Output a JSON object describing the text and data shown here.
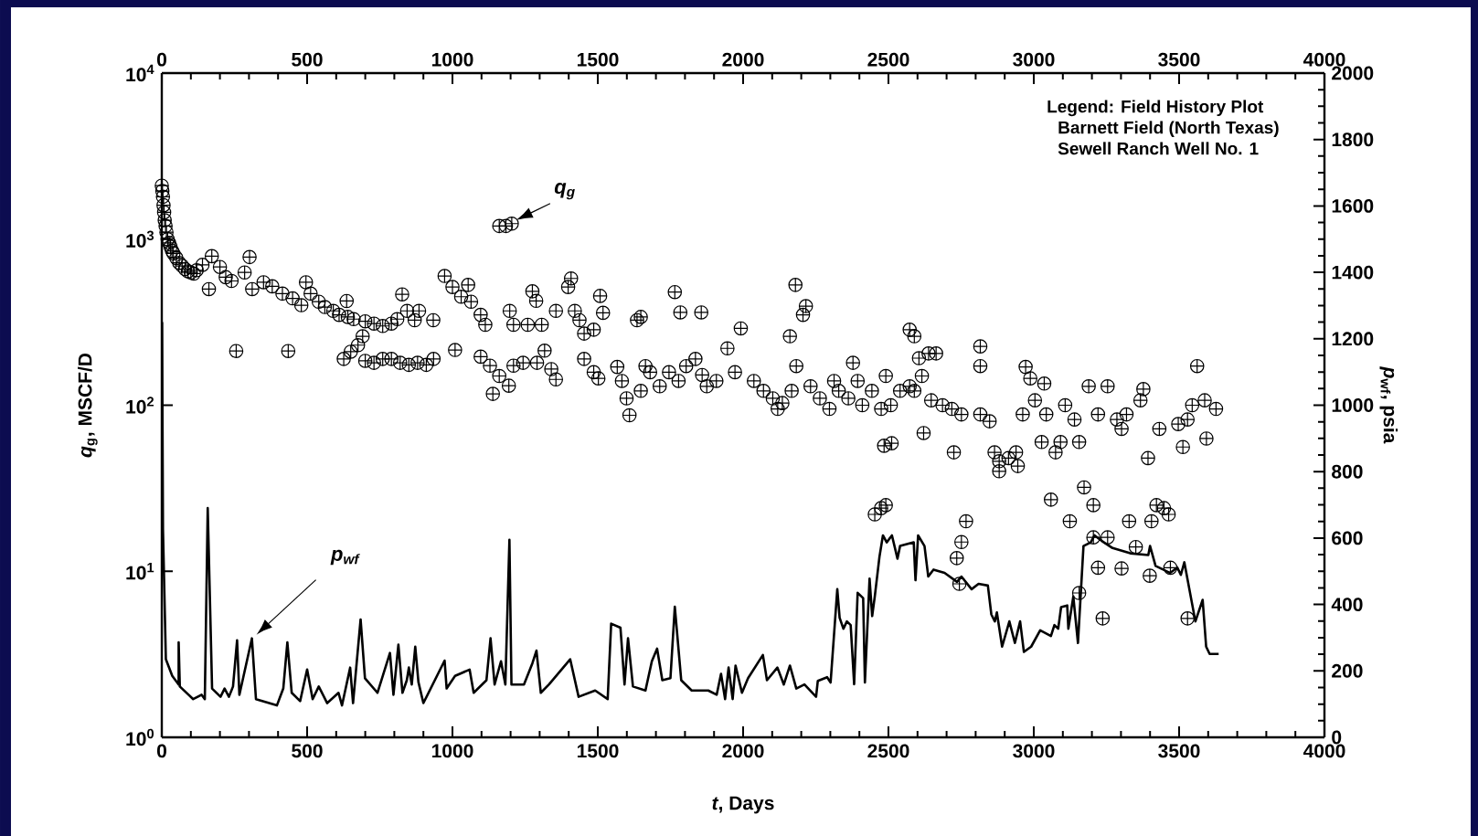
{
  "chart_data": {
    "type": "scatter",
    "log": true,
    "marker": "cross",
    "xlabel": "*t*, Days",
    "ylabel": "*q*$_{g}$, MSCF/D",
    "y2label": "*p*$_{wf}$, psia",
    "annotations": [
      "Legend: Field History Plot",
      "Barnett Field (North Texas)",
      "Sewell Ranch Well No. 1"
    ],
    "xlim": [
      0,
      4000
    ],
    "xticks": [
      0,
      500,
      1000,
      1500,
      2000,
      2500,
      3000,
      3500,
      4000
    ],
    "x2lim": [
      0,
      4000
    ],
    "x2ticks": [
      0,
      500,
      1000,
      1500,
      2000,
      2500,
      3000,
      3500,
      4000
    ],
    "ylim": [
      1,
      10000
    ],
    "yticks": [
      {
        "value": 1,
        "label": "10$^{0}$"
      },
      {
        "value": 10,
        "label": "10$^{1}$"
      },
      {
        "value": 100,
        "label": "10$^{2}$"
      },
      {
        "value": 1000,
        "label": "10$^{3}$"
      },
      {
        "value": 10000,
        "label": "10$^{4}$"
      }
    ],
    "y2lim": [
      0,
      2000
    ],
    "y2ticks": [
      0,
      200,
      400,
      600,
      800,
      1000,
      1200,
      1400,
      1600,
      1800,
      2000
    ],
    "series": [
      {
        "name": "q$_{g}$",
        "color": "#000000",
        "x": [
          0,
          2,
          4,
          6,
          8,
          10,
          13,
          16,
          20,
          25,
          30,
          35,
          40,
          50,
          60,
          70,
          80,
          90,
          100,
          110,
          120,
          140,
          162,
          172,
          200,
          220,
          240,
          256,
          285,
          302,
          311,
          350,
          380,
          415,
          435,
          450,
          480,
          496,
          512,
          540,
          561,
          590,
          610,
          626,
          636,
          640,
          650,
          660,
          675,
          691,
          700,
          700,
          730,
          730,
          760,
          760,
          790,
          790,
          810,
          820,
          827,
          844,
          850,
          870,
          880,
          885,
          910,
          934,
          935,
          973,
          1000,
          1009,
          1030,
          1054,
          1064,
          1097,
          1097,
          1113,
          1129,
          1139,
          1161,
          1161,
          1184,
          1194,
          1197,
          1204,
          1210,
          1210,
          1243,
          1259,
          1275,
          1288,
          1291,
          1307,
          1317,
          1340,
          1356,
          1356,
          1398,
          1408,
          1421,
          1437,
          1453,
          1453,
          1486,
          1486,
          1502,
          1508,
          1518,
          1567,
          1583,
          1599,
          1609,
          1635,
          1648,
          1648,
          1664,
          1680,
          1713,
          1745,
          1765,
          1778,
          1784,
          1804,
          1836,
          1856,
          1859,
          1875,
          1908,
          1946,
          1972,
          1992,
          2037,
          2070,
          2102,
          2119,
          2135,
          2161,
          2167,
          2180,
          2183,
          2206,
          2216,
          2232,
          2264,
          2297,
          2313,
          2329,
          2362,
          2378,
          2394,
          2410,
          2443,
          2453,
          2475,
          2475,
          2485,
          2491,
          2491,
          2508,
          2511,
          2540,
          2573,
          2573,
          2589,
          2589,
          2605,
          2615,
          2621,
          2638,
          2647,
          2664,
          2686,
          2718,
          2725,
          2735,
          2744,
          2751,
          2751,
          2767,
          2816,
          2816,
          2816,
          2848,
          2865,
          2881,
          2881,
          2913,
          2939,
          2945,
          2962,
          2972,
          2988,
          3004,
          3027,
          3036,
          3043,
          3059,
          3075,
          3092,
          3108,
          3124,
          3140,
          3156,
          3156,
          3173,
          3189,
          3205,
          3205,
          3221,
          3221,
          3237,
          3254,
          3254,
          3286,
          3302,
          3302,
          3319,
          3328,
          3351,
          3367,
          3377,
          3393,
          3399,
          3405,
          3422,
          3432,
          3448,
          3464,
          3470,
          3497,
          3513,
          3529,
          3529,
          3545,
          3562,
          3588,
          3594,
          3627
        ],
        "values": [
          2100,
          1950,
          1800,
          1600,
          1450,
          1300,
          1200,
          1100,
          1000,
          950,
          900,
          850,
          820,
          770,
          720,
          690,
          660,
          640,
          630,
          620,
          650,
          700,
          500,
          790,
          680,
          590,
          560,
          212,
          630,
          780,
          500,
          550,
          520,
          470,
          212,
          440,
          400,
          550,
          470,
          420,
          390,
          370,
          350,
          190,
          424,
          340,
          210,
          330,
          230,
          260,
          320,
          185,
          310,
          180,
          300,
          190,
          310,
          190,
          330,
          180,
          465,
          370,
          175,
          325,
          180,
          370,
          175,
          325,
          190,
          600,
          515,
          215,
          450,
          530,
          420,
          350,
          196,
          305,
          173,
          117,
          1200,
          150,
          1200,
          131,
          370,
          1240,
          305,
          173,
          180,
          305,
          485,
          425,
          180,
          305,
          213,
          165,
          370,
          143,
          515,
          580,
          370,
          325,
          270,
          190,
          285,
          158,
          145,
          455,
          360,
          170,
          140,
          110,
          87,
          325,
          340,
          122,
          172,
          158,
          130,
          158,
          480,
          140,
          362,
          172,
          190,
          362,
          152,
          130,
          140,
          220,
          158,
          290,
          140,
          122,
          110,
          95,
          103,
          260,
          122,
          530,
          172,
          350,
          395,
          130,
          110,
          95,
          140,
          122,
          110,
          180,
          140,
          100,
          122,
          22,
          95,
          24,
          57,
          150,
          25,
          100,
          59,
          122,
          130,
          285,
          260,
          122,
          192,
          150,
          68,
          205,
          107,
          205,
          100,
          95,
          52,
          12,
          8.4,
          88,
          15,
          20,
          226,
          172,
          88,
          80,
          52,
          46,
          40,
          48,
          52,
          43,
          88,
          170,
          145,
          107,
          60,
          135,
          88,
          27,
          52,
          60,
          100,
          20,
          82,
          60,
          7.4,
          32,
          130,
          25,
          16,
          88,
          10.5,
          5.2,
          130,
          16,
          82,
          72,
          10.4,
          88,
          20,
          14,
          107,
          125,
          48,
          9.4,
          20,
          25,
          72,
          24,
          22,
          10.5,
          77,
          56,
          82,
          5.2,
          100,
          172,
          107,
          63,
          95
        ]
      },
      {
        "name": "p$_{wf}$",
        "type": "line",
        "axis": "y2",
        "marker": "none",
        "color": "#000000",
        "x": [
          1,
          4,
          14,
          36,
          58,
          58,
          62,
          108,
          137,
          148,
          158,
          173,
          202,
          216,
          231,
          245,
          259,
          267,
          310,
          324,
          396,
          418,
          432,
          447,
          476,
          500,
          519,
          540,
          569,
          608,
          620,
          648,
          658,
          684,
          699,
          742,
          785,
          797,
          814,
          828,
          843,
          850,
          860,
          872,
          883,
          900,
          973,
          980,
          1009,
          1059,
          1073,
          1117,
          1131,
          1145,
          1167,
          1182,
          1196,
          1203,
          1246,
          1275,
          1289,
          1304,
          1332,
          1405,
          1434,
          1491,
          1534,
          1546,
          1578,
          1592,
          1604,
          1621,
          1664,
          1686,
          1704,
          1722,
          1750,
          1765,
          1787,
          1823,
          1880,
          1909,
          1924,
          1938,
          1950,
          1964,
          1974,
          1996,
          2017,
          2068,
          2082,
          2118,
          2140,
          2161,
          2183,
          2211,
          2251,
          2257,
          2289,
          2301,
          2324,
          2332,
          2345,
          2357,
          2370,
          2382,
          2394,
          2413,
          2419,
          2435,
          2444,
          2453,
          2469,
          2481,
          2494,
          2512,
          2531,
          2540,
          2587,
          2593,
          2602,
          2624,
          2637,
          2655,
          2693,
          2736,
          2751,
          2786,
          2810,
          2842,
          2854,
          2866,
          2873,
          2891,
          2916,
          2935,
          2953,
          2966,
          2991,
          3022,
          3059,
          3071,
          3084,
          3094,
          3115,
          3119,
          3136,
          3152,
          3171,
          3196,
          3209,
          3233,
          3271,
          3332,
          3394,
          3400,
          3419,
          3469,
          3494,
          3506,
          3518,
          3556,
          3581,
          3593,
          3605,
          3636
        ],
        "values": [
          1250,
          627,
          235,
          185,
          159,
          286,
          153,
          115,
          128,
          115,
          690,
          147,
          122,
          147,
          122,
          153,
          292,
          128,
          298,
          115,
          96,
          147,
          286,
          134,
          109,
          204,
          115,
          153,
          103,
          134,
          96,
          210,
          103,
          355,
          178,
          134,
          254,
          128,
          279,
          134,
          172,
          210,
          159,
          273,
          166,
          103,
          231,
          147,
          185,
          204,
          134,
          172,
          298,
          159,
          229,
          159,
          595,
          159,
          159,
          223,
          261,
          134,
          159,
          235,
          122,
          141,
          115,
          342,
          330,
          159,
          298,
          153,
          141,
          229,
          267,
          172,
          178,
          393,
          172,
          141,
          141,
          128,
          191,
          115,
          210,
          115,
          216,
          134,
          178,
          248,
          172,
          210,
          159,
          216,
          147,
          159,
          122,
          170,
          181,
          165,
          446,
          360,
          327,
          349,
          338,
          160,
          435,
          419,
          165,
          478,
          365,
          424,
          543,
          608,
          587,
          608,
          538,
          576,
          587,
          473,
          608,
          576,
          484,
          505,
          495,
          468,
          484,
          446,
          462,
          457,
          370,
          349,
          376,
          273,
          349,
          284,
          349,
          257,
          273,
          322,
          305,
          338,
          327,
          392,
          397,
          327,
          424,
          284,
          576,
          587,
          608,
          592,
          570,
          554,
          549,
          576,
          516,
          495,
          511,
          489,
          527,
          349,
          414,
          273,
          251,
          251
        ]
      }
    ]
  }
}
